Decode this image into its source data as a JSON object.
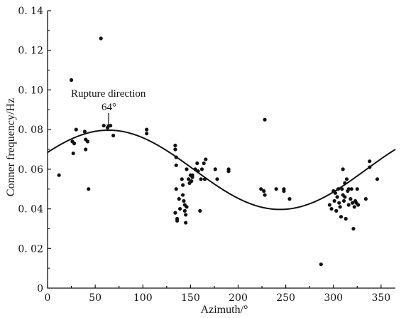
{
  "chart_data": {
    "type": "scatter",
    "xlabel": "Azimuth/°",
    "ylabel": "Conner frequency/Hz",
    "xlim": [
      0,
      365
    ],
    "ylim": [
      0,
      0.14
    ],
    "x_ticks": [
      0,
      50,
      100,
      150,
      200,
      250,
      300,
      350
    ],
    "x_tick_labels": [
      "0",
      "50",
      "100",
      "150",
      "200",
      "250",
      "300",
      "350"
    ],
    "y_ticks": [
      0.02,
      0.04,
      0.06,
      0.08,
      0.1,
      0.12,
      0.14
    ],
    "y_tick_labels": [
      "0. 02",
      "0. 04",
      "0. 06",
      "0. 08",
      "0. 10",
      "0. 12",
      "0. 14"
    ],
    "grid": false,
    "annotations": [
      {
        "text": "Rupture direction",
        "x": 64,
        "y": 0.08
      },
      {
        "text": "64°",
        "x": 64,
        "y": 0.08
      }
    ],
    "fit_curve": {
      "form": "sinusoid",
      "mean": 0.0597,
      "amplitude": 0.02,
      "peak_azimuth": 64,
      "period": 360
    },
    "points": [
      [
        12,
        0.057
      ],
      [
        25,
        0.105
      ],
      [
        26,
        0.074
      ],
      [
        27,
        0.068
      ],
      [
        28,
        0.073
      ],
      [
        30,
        0.08
      ],
      [
        39,
        0.079
      ],
      [
        40,
        0.075
      ],
      [
        40,
        0.07
      ],
      [
        42,
        0.074
      ],
      [
        43,
        0.05
      ],
      [
        56,
        0.126
      ],
      [
        59,
        0.082
      ],
      [
        63,
        0.081
      ],
      [
        66,
        0.082
      ],
      [
        69,
        0.077
      ],
      [
        104,
        0.08
      ],
      [
        104,
        0.078
      ],
      [
        134,
        0.072
      ],
      [
        134,
        0.07
      ],
      [
        135,
        0.066
      ],
      [
        135,
        0.062
      ],
      [
        135,
        0.05
      ],
      [
        134,
        0.038
      ],
      [
        136,
        0.035
      ],
      [
        136,
        0.034
      ],
      [
        138,
        0.045
      ],
      [
        139,
        0.04
      ],
      [
        141,
        0.055
      ],
      [
        142,
        0.052
      ],
      [
        142,
        0.047
      ],
      [
        143,
        0.044
      ],
      [
        144,
        0.042
      ],
      [
        144,
        0.039
      ],
      [
        145,
        0.037
      ],
      [
        145,
        0.033
      ],
      [
        146,
        0.06
      ],
      [
        146,
        0.041
      ],
      [
        148,
        0.055
      ],
      [
        149,
        0.053
      ],
      [
        150,
        0.057
      ],
      [
        151,
        0.054
      ],
      [
        152,
        0.057
      ],
      [
        152,
        0.056
      ],
      [
        155,
        0.06
      ],
      [
        157,
        0.063
      ],
      [
        158,
        0.059
      ],
      [
        160,
        0.039
      ],
      [
        161,
        0.055
      ],
      [
        162,
        0.06
      ],
      [
        164,
        0.063
      ],
      [
        165,
        0.055
      ],
      [
        166,
        0.065
      ],
      [
        176,
        0.06
      ],
      [
        178,
        0.055
      ],
      [
        190,
        0.06
      ],
      [
        190,
        0.059
      ],
      [
        224,
        0.05
      ],
      [
        227,
        0.049
      ],
      [
        228,
        0.085
      ],
      [
        228,
        0.047
      ],
      [
        240,
        0.05
      ],
      [
        248,
        0.05
      ],
      [
        248,
        0.049
      ],
      [
        254,
        0.045
      ],
      [
        287,
        0.012
      ],
      [
        296,
        0.042
      ],
      [
        298,
        0.04
      ],
      [
        300,
        0.049
      ],
      [
        301,
        0.044
      ],
      [
        302,
        0.048
      ],
      [
        303,
        0.039
      ],
      [
        304,
        0.046
      ],
      [
        305,
        0.05
      ],
      [
        306,
        0.043
      ],
      [
        307,
        0.041
      ],
      [
        308,
        0.036
      ],
      [
        309,
        0.05
      ],
      [
        310,
        0.06
      ],
      [
        310,
        0.047
      ],
      [
        311,
        0.044
      ],
      [
        312,
        0.053
      ],
      [
        312,
        0.046
      ],
      [
        313,
        0.035
      ],
      [
        314,
        0.055
      ],
      [
        315,
        0.049
      ],
      [
        316,
        0.05
      ],
      [
        316,
        0.042
      ],
      [
        318,
        0.045
      ],
      [
        319,
        0.05
      ],
      [
        320,
        0.043
      ],
      [
        321,
        0.03
      ],
      [
        322,
        0.041
      ],
      [
        323,
        0.044
      ],
      [
        324,
        0.043
      ],
      [
        325,
        0.05
      ],
      [
        326,
        0.042
      ],
      [
        334,
        0.045
      ],
      [
        338,
        0.064
      ],
      [
        338,
        0.061
      ],
      [
        346,
        0.055
      ]
    ]
  }
}
